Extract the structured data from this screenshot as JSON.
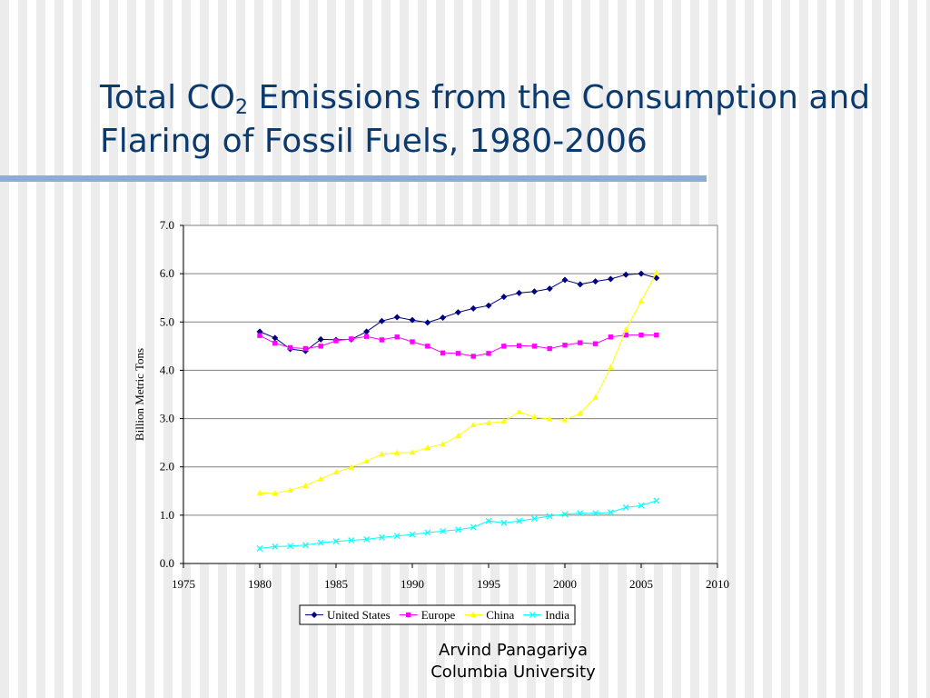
{
  "slide": {
    "title_pre": "Total CO",
    "title_sub": "2",
    "title_post": " Emissions from the Consumption and Flaring of Fossil Fuels, 1980-2006",
    "credit_line1": "Arvind Panagariya",
    "credit_line2": "Columbia University"
  },
  "chart_data": {
    "type": "line",
    "title": "",
    "xlabel": "",
    "ylabel": "Billion Metric Tons",
    "xlim": [
      1975,
      2010
    ],
    "ylim": [
      0,
      7
    ],
    "x_ticks": [
      "1975",
      "1980",
      "1985",
      "1990",
      "1995",
      "2000",
      "2005",
      "2010"
    ],
    "y_ticks": [
      "0.0",
      "1.0",
      "2.0",
      "3.0",
      "4.0",
      "5.0",
      "6.0",
      "7.0"
    ],
    "grid": "horizontal",
    "legend_position": "bottom",
    "x": [
      1980,
      1981,
      1982,
      1983,
      1984,
      1985,
      1986,
      1987,
      1988,
      1989,
      1990,
      1991,
      1992,
      1993,
      1994,
      1995,
      1996,
      1997,
      1998,
      1999,
      2000,
      2001,
      2002,
      2003,
      2004,
      2005,
      2006
    ],
    "series": [
      {
        "name": "United States",
        "color": "#000080",
        "marker": "diamond",
        "values": [
          4.8,
          4.67,
          4.44,
          4.4,
          4.64,
          4.63,
          4.64,
          4.8,
          5.02,
          5.1,
          5.04,
          4.99,
          5.09,
          5.2,
          5.28,
          5.34,
          5.52,
          5.6,
          5.63,
          5.69,
          5.87,
          5.78,
          5.84,
          5.89,
          5.98,
          6.0,
          5.91
        ]
      },
      {
        "name": "Europe",
        "color": "#ff00ff",
        "marker": "square",
        "values": [
          4.72,
          4.56,
          4.47,
          4.45,
          4.5,
          4.61,
          4.65,
          4.7,
          4.63,
          4.69,
          4.59,
          4.5,
          4.36,
          4.35,
          4.29,
          4.35,
          4.5,
          4.51,
          4.5,
          4.45,
          4.52,
          4.57,
          4.55,
          4.69,
          4.73,
          4.73,
          4.73
        ]
      },
      {
        "name": "China",
        "color": "#ffff00",
        "marker": "triangle",
        "values": [
          1.46,
          1.45,
          1.52,
          1.61,
          1.75,
          1.89,
          1.99,
          2.12,
          2.26,
          2.29,
          2.3,
          2.4,
          2.47,
          2.64,
          2.87,
          2.91,
          2.94,
          3.14,
          3.03,
          2.99,
          2.97,
          3.11,
          3.44,
          4.06,
          4.84,
          5.43,
          6.02
        ]
      },
      {
        "name": "India",
        "color": "#00ffff",
        "marker": "x",
        "values": [
          0.31,
          0.35,
          0.36,
          0.38,
          0.43,
          0.46,
          0.48,
          0.5,
          0.54,
          0.57,
          0.6,
          0.64,
          0.67,
          0.7,
          0.75,
          0.88,
          0.84,
          0.88,
          0.93,
          0.98,
          1.02,
          1.04,
          1.04,
          1.06,
          1.16,
          1.2,
          1.3
        ]
      }
    ]
  }
}
